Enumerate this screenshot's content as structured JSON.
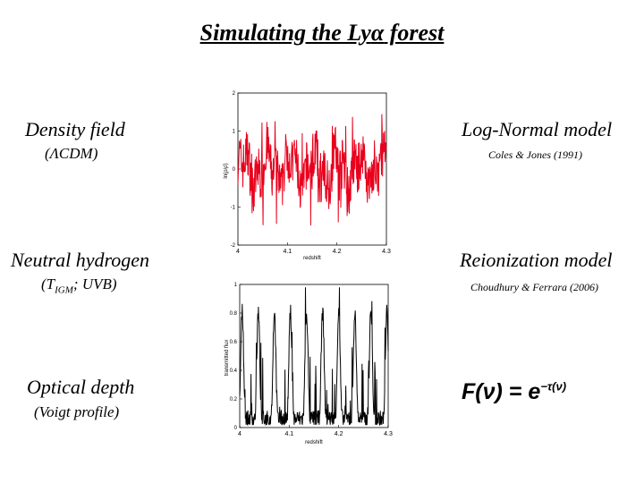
{
  "slide": {
    "title_prefix": "Simulating the Ly",
    "title_greek": "α",
    "title_suffix": " forest"
  },
  "left": {
    "density_field": "Density field",
    "density_sub": "(ΛCDM)",
    "neutral_hydrogen": "Neutral hydrogen",
    "neutral_sub_prefix": "(T",
    "neutral_sub_subscript": "IGM",
    "neutral_sub_suffix": "; UVB)",
    "optical_depth": "Optical depth",
    "optical_sub": "(Voigt profile)"
  },
  "right": {
    "lognormal": "Log-Normal model",
    "lognormal_cite": "Coles & Jones (1991)",
    "reionization": "Reionization model",
    "reionization_cite": "Choudhury & Ferrara (2006)",
    "formula_lhs": "F(ν) = e",
    "formula_exp": "−τ(ν)"
  },
  "chart_data": [
    {
      "type": "line",
      "color": "#e8001c",
      "xlabel": "redshift",
      "ylabel": "ln(ρ/ρ̄)",
      "xlim": [
        4.0,
        4.3
      ],
      "ylim": [
        -2,
        2
      ],
      "xticks": [
        "4",
        "4.1",
        "4.2",
        "4.3"
      ],
      "yticks": [
        "2",
        "1",
        "0",
        "-1",
        "-2"
      ]
    },
    {
      "type": "line",
      "color": "#000000",
      "xlabel": "redshift",
      "ylabel": "transmitted flux",
      "xlim": [
        4.0,
        4.3
      ],
      "ylim": [
        0,
        1
      ],
      "xticks": [
        "4",
        "4.1",
        "4.2",
        "4.3"
      ],
      "yticks": [
        "1",
        "0.8",
        "0.6",
        "0.4",
        "0.2",
        "0"
      ]
    }
  ]
}
